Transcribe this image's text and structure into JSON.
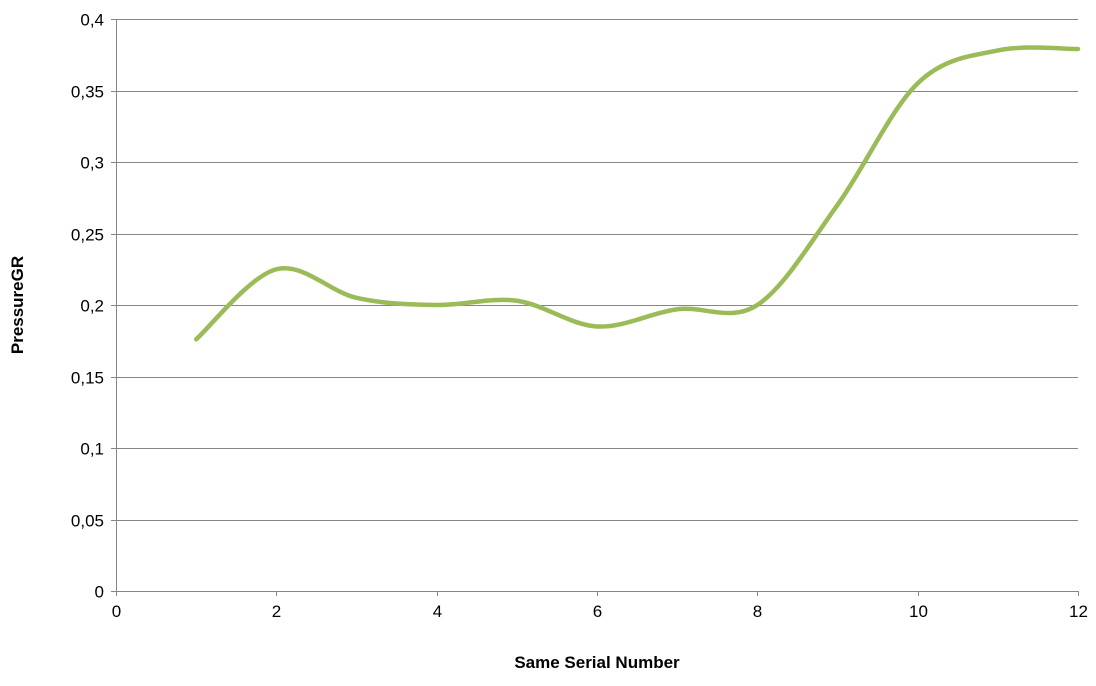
{
  "chart_data": {
    "type": "scatter",
    "mode": "smooth-line",
    "title": "",
    "xlabel": "Same Serial Number",
    "ylabel": "PressureGR",
    "xlim": [
      0,
      12
    ],
    "ylim": [
      0,
      0.4
    ],
    "x_ticks": [
      0,
      2,
      4,
      6,
      8,
      10,
      12
    ],
    "y_ticks": [
      0,
      0.05,
      0.1,
      0.15,
      0.2,
      0.25,
      0.3,
      0.35,
      0.4
    ],
    "x_tick_labels": [
      "0",
      "2",
      "4",
      "6",
      "8",
      "10",
      "12"
    ],
    "y_tick_labels": [
      "0",
      "0,05",
      "0,1",
      "0,15",
      "0,2",
      "0,25",
      "0,3",
      "0,35",
      "0,4"
    ],
    "grid": {
      "horizontal": true,
      "vertical": false
    },
    "legend": "none",
    "series": [
      {
        "color": "#9BBB59",
        "points": [
          {
            "x": 1,
            "y": 0.176
          },
          {
            "x": 2,
            "y": 0.225
          },
          {
            "x": 3,
            "y": 0.205
          },
          {
            "x": 4,
            "y": 0.2
          },
          {
            "x": 5,
            "y": 0.203
          },
          {
            "x": 6,
            "y": 0.185
          },
          {
            "x": 7,
            "y": 0.197
          },
          {
            "x": 8,
            "y": 0.2
          },
          {
            "x": 9,
            "y": 0.27
          },
          {
            "x": 10,
            "y": 0.355
          },
          {
            "x": 11,
            "y": 0.378
          },
          {
            "x": 12,
            "y": 0.379
          }
        ]
      }
    ]
  }
}
